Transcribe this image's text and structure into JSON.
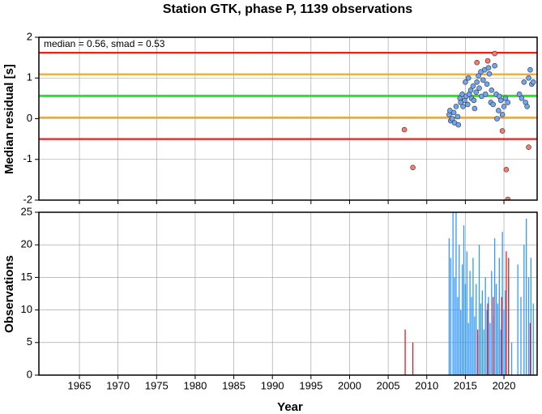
{
  "chart_data": [
    {
      "type": "scatter",
      "title": "Station GTK, phase P, 1139 observations",
      "ylabel": "Median residual [s]",
      "annotation": "median = 0.56, smad = 0.53",
      "xlim": [
        1959.75,
        2024.3
      ],
      "xticks": [
        1965,
        1970,
        1975,
        1980,
        1985,
        1990,
        1995,
        2000,
        2005,
        2010,
        2015,
        2020
      ],
      "ylim": [
        -2,
        2
      ],
      "yticks": [
        -2,
        -1,
        0,
        1,
        2
      ],
      "grid": true,
      "hlines": [
        {
          "value": 1.62,
          "color": "#e8201c"
        },
        {
          "value": -0.5,
          "color": "#e8201c"
        },
        {
          "value": 1.09,
          "color": "#f5a82a"
        },
        {
          "value": 0.03,
          "color": "#f5a82a"
        },
        {
          "value": 0.56,
          "color": "#2ee02e"
        }
      ],
      "series": [
        {
          "color": "#6fa6f2",
          "x": [
            2012.9,
            2013.0,
            2013.1,
            2013.3,
            2013.5,
            2013.6,
            2013.8,
            2014.0,
            2014.1,
            2014.3,
            2014.4,
            2014.6,
            2014.7,
            2014.9,
            2015.0,
            2015.1,
            2015.3,
            2015.4,
            2015.5,
            2015.7,
            2015.8,
            2016.0,
            2016.1,
            2016.2,
            2016.4,
            2016.5,
            2016.7,
            2016.8,
            2017.0,
            2017.1,
            2017.3,
            2017.5,
            2017.6,
            2017.8,
            2018.0,
            2018.1,
            2018.3,
            2018.4,
            2018.6,
            2018.8,
            2019.0,
            2019.1,
            2019.3,
            2019.4,
            2019.6,
            2019.8,
            2020.0,
            2020.2,
            2020.5,
            2022.0,
            2022.3,
            2022.6,
            2022.8,
            2023.0,
            2023.2,
            2023.4,
            2023.6,
            2023.8
          ],
          "values": [
            0.1,
            0.2,
            -0.05,
            0.0,
            0.15,
            -0.1,
            0.3,
            0.05,
            -0.15,
            0.5,
            0.4,
            0.6,
            0.3,
            0.45,
            0.9,
            0.55,
            0.35,
            1.0,
            0.6,
            0.7,
            0.5,
            0.8,
            0.45,
            0.25,
            0.65,
            0.9,
            1.05,
            0.75,
            1.15,
            0.55,
            0.95,
            1.2,
            0.6,
            0.85,
            1.25,
            1.1,
            0.4,
            0.7,
            0.35,
            1.3,
            0.6,
            0.0,
            0.2,
            0.55,
            0.45,
            0.1,
            0.3,
            0.5,
            0.4,
            0.6,
            0.5,
            0.9,
            0.4,
            0.3,
            1.0,
            1.2,
            0.85,
            0.9
          ]
        },
        {
          "color": "#f77b6b",
          "x": [
            2007.1,
            2008.2,
            2016.5,
            2017.9,
            2018.8,
            2019.8,
            2020.3,
            2020.5,
            2023.2
          ],
          "values": [
            -0.27,
            -1.2,
            1.38,
            1.42,
            1.6,
            -0.3,
            -1.25,
            -1.98,
            -0.7
          ]
        }
      ]
    },
    {
      "type": "bar",
      "xlabel": "Year",
      "ylabel": "Observations",
      "xlim": [
        1959.75,
        2024.3
      ],
      "xticks": [
        1965,
        1970,
        1975,
        1980,
        1985,
        1990,
        1995,
        2000,
        2005,
        2010,
        2015,
        2020
      ],
      "ylim": [
        0,
        25
      ],
      "yticks": [
        0,
        5,
        10,
        15,
        20,
        25
      ],
      "grid": true,
      "series": [
        {
          "color": "#3399ff",
          "x": [
            2012.9,
            2013.1,
            2013.4,
            2013.6,
            2013.8,
            2014.0,
            2014.2,
            2014.4,
            2014.6,
            2014.8,
            2015.0,
            2015.2,
            2015.4,
            2015.6,
            2015.8,
            2016.0,
            2016.2,
            2016.4,
            2016.6,
            2016.8,
            2017.0,
            2017.2,
            2017.4,
            2017.6,
            2017.8,
            2018.0,
            2018.2,
            2018.4,
            2018.6,
            2018.8,
            2019.0,
            2019.2,
            2019.4,
            2019.6,
            2019.8,
            2020.0,
            2020.2,
            2020.6,
            2021.0,
            2021.8,
            2022.2,
            2022.6,
            2022.9,
            2023.2,
            2023.5,
            2023.8
          ],
          "values": [
            21,
            18,
            25,
            15,
            25,
            12,
            20,
            10,
            17,
            23,
            14,
            19,
            8,
            16,
            12,
            18,
            9,
            14,
            6,
            20,
            11,
            13,
            7,
            15,
            10,
            12,
            8,
            16,
            9,
            21,
            14,
            11,
            18,
            7,
            22,
            10,
            13,
            15,
            5,
            17,
            12,
            20,
            24,
            15,
            18,
            11
          ]
        },
        {
          "color": "#e02020",
          "x": [
            2007.2,
            2008.2,
            2016.6,
            2017.9,
            2018.6,
            2019.7,
            2020.3,
            2020.6,
            2023.4
          ],
          "values": [
            7,
            5,
            7,
            11,
            12,
            12,
            19,
            18,
            8
          ]
        }
      ]
    }
  ]
}
